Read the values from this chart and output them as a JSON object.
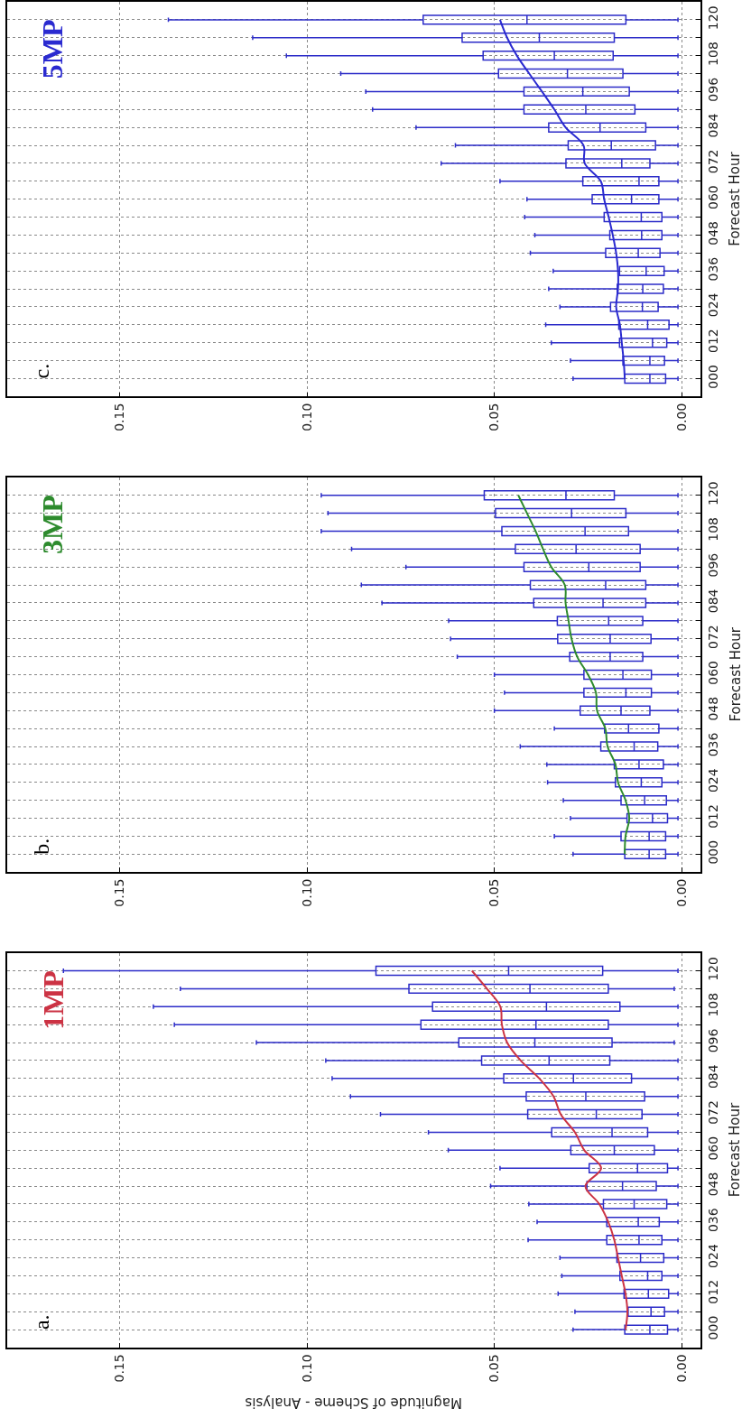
{
  "chart_data": [
    {
      "type": "box",
      "orientation": "horizontal",
      "ylabel": "Forecast Hour",
      "annotations": [
        "c.",
        "5MP"
      ],
      "categories": [
        "120",
        null,
        "108",
        null,
        "096",
        null,
        "084",
        null,
        "072",
        null,
        "060",
        null,
        "048",
        null,
        "036",
        null,
        "024",
        null,
        "012",
        null,
        "000"
      ],
      "xlim": [
        0.18,
        -0.005
      ],
      "xticks": [
        {
          "value": 0.15,
          "label": "0.15"
        },
        {
          "value": 0.1,
          "label": "0.10"
        },
        {
          "value": 0.05,
          "label": "0.05"
        },
        {
          "value": 0,
          "label": "0.00"
        }
      ],
      "grid": true,
      "series": [
        {
          "color": "#2b2bc8",
          "boxes": [
            {
              "low": 0.001,
              "q1": 0.0149,
              "median": 0.0413,
              "q3": 0.069,
              "high": 0.137
            },
            {
              "low": 0.001,
              "q1": 0.018,
              "median": 0.038,
              "q3": 0.0586,
              "high": 0.1145
            },
            {
              "low": 0.001,
              "q1": 0.0183,
              "median": 0.034,
              "q3": 0.053,
              "high": 0.1055
            },
            {
              "low": 0.001,
              "q1": 0.0157,
              "median": 0.0305,
              "q3": 0.0489,
              "high": 0.091
            },
            {
              "low": 0.001,
              "q1": 0.014,
              "median": 0.0264,
              "q3": 0.0421,
              "high": 0.0843
            },
            {
              "low": 0.001,
              "q1": 0.0125,
              "median": 0.0256,
              "q3": 0.0421,
              "high": 0.0825
            },
            {
              "low": 0.001,
              "q1": 0.0096,
              "median": 0.0218,
              "q3": 0.0355,
              "high": 0.0709
            },
            {
              "low": 0.001,
              "q1": 0.007,
              "median": 0.0188,
              "q3": 0.0303,
              "high": 0.0604
            },
            {
              "low": 0.001,
              "q1": 0.0085,
              "median": 0.016,
              "q3": 0.0309,
              "high": 0.0642
            },
            {
              "low": 0.001,
              "q1": 0.0061,
              "median": 0.0114,
              "q3": 0.0264,
              "high": 0.0485
            },
            {
              "low": 0.001,
              "q1": 0.0061,
              "median": 0.0134,
              "q3": 0.0239,
              "high": 0.0413
            },
            {
              "low": 0.001,
              "q1": 0.0053,
              "median": 0.0108,
              "q3": 0.0207,
              "high": 0.0419
            },
            {
              "low": 0.001,
              "q1": 0.0053,
              "median": 0.0107,
              "q3": 0.0192,
              "high": 0.0392
            },
            {
              "low": 0.001,
              "q1": 0.0058,
              "median": 0.0116,
              "q3": 0.0203,
              "high": 0.0404
            },
            {
              "low": 0.001,
              "q1": 0.0047,
              "median": 0.0095,
              "q3": 0.0166,
              "high": 0.0343
            },
            {
              "low": 0.001,
              "q1": 0.0049,
              "median": 0.0104,
              "q3": 0.0172,
              "high": 0.0355
            },
            {
              "low": 0.001,
              "q1": 0.0063,
              "median": 0.0105,
              "q3": 0.019,
              "high": 0.0325
            },
            {
              "low": 0.001,
              "q1": 0.0034,
              "median": 0.0091,
              "q3": 0.0168,
              "high": 0.0363
            },
            {
              "low": 0.001,
              "q1": 0.004,
              "median": 0.0078,
              "q3": 0.0166,
              "high": 0.0348
            },
            {
              "low": 0.001,
              "q1": 0.0046,
              "median": 0.0085,
              "q3": 0.0157,
              "high": 0.0297
            },
            {
              "low": 0.001,
              "q1": 0.0043,
              "median": 0.0085,
              "q3": 0.0152,
              "high": 0.029
            }
          ]
        },
        {
          "type": "line",
          "color": "#2a2ad0",
          "values": [
            0.0485,
            0.0466,
            0.044,
            0.0407,
            0.0373,
            0.034,
            0.031,
            0.0262,
            0.0259,
            0.0216,
            0.0207,
            0.0195,
            0.0184,
            0.0175,
            0.017,
            0.017,
            0.0175,
            0.0165,
            0.016,
            0.0155,
            0.0152
          ]
        }
      ]
    },
    {
      "type": "box",
      "orientation": "horizontal",
      "ylabel": "Forecast Hour",
      "annotations": [
        "b.",
        "3MP"
      ],
      "categories": [
        "120",
        null,
        "108",
        null,
        "096",
        null,
        "084",
        null,
        "072",
        null,
        "060",
        null,
        "048",
        null,
        "036",
        null,
        "024",
        null,
        "012",
        null,
        "000"
      ],
      "xlim": [
        0.18,
        -0.005
      ],
      "xticks": [
        {
          "value": 0.15,
          "label": "0.15"
        },
        {
          "value": 0.1,
          "label": "0.10"
        },
        {
          "value": 0.05,
          "label": "0.05"
        },
        {
          "value": 0,
          "label": "0.00"
        }
      ],
      "grid": true,
      "series": [
        {
          "color": "#2b2bc8",
          "boxes": [
            {
              "low": 0.001,
              "q1": 0.018,
              "median": 0.0309,
              "q3": 0.0527,
              "high": 0.0962
            },
            {
              "low": 0.001,
              "q1": 0.0149,
              "median": 0.0294,
              "q3": 0.0497,
              "high": 0.0944
            },
            {
              "low": 0.001,
              "q1": 0.0142,
              "median": 0.0258,
              "q3": 0.048,
              "high": 0.0962
            },
            {
              "low": 0.001,
              "q1": 0.0111,
              "median": 0.0282,
              "q3": 0.0444,
              "high": 0.0881
            },
            {
              "low": 0.001,
              "q1": 0.0111,
              "median": 0.0248,
              "q3": 0.0421,
              "high": 0.0736
            },
            {
              "low": 0.001,
              "q1": 0.0096,
              "median": 0.0203,
              "q3": 0.0404,
              "high": 0.0855
            },
            {
              "low": 0.001,
              "q1": 0.0096,
              "median": 0.021,
              "q3": 0.0395,
              "high": 0.08
            },
            {
              "low": 0.001,
              "q1": 0.0104,
              "median": 0.0195,
              "q3": 0.0332,
              "high": 0.0622
            },
            {
              "low": 0.001,
              "q1": 0.0082,
              "median": 0.0191,
              "q3": 0.0331,
              "high": 0.0617
            },
            {
              "low": 0.001,
              "q1": 0.0104,
              "median": 0.0191,
              "q3": 0.0299,
              "high": 0.0599
            },
            {
              "low": 0.001,
              "q1": 0.0081,
              "median": 0.0157,
              "q3": 0.0261,
              "high": 0.05
            },
            {
              "low": 0.001,
              "q1": 0.0081,
              "median": 0.0149,
              "q3": 0.0261,
              "high": 0.0473
            },
            {
              "low": 0.001,
              "q1": 0.0085,
              "median": 0.0162,
              "q3": 0.0271,
              "high": 0.05
            },
            {
              "low": 0.001,
              "q1": 0.0061,
              "median": 0.0142,
              "q3": 0.0206,
              "high": 0.034
            },
            {
              "low": 0.001,
              "q1": 0.0064,
              "median": 0.0127,
              "q3": 0.0216,
              "high": 0.0431
            },
            {
              "low": 0.001,
              "q1": 0.0049,
              "median": 0.0114,
              "q3": 0.018,
              "high": 0.036
            },
            {
              "low": 0.001,
              "q1": 0.0053,
              "median": 0.0108,
              "q3": 0.0177,
              "high": 0.0358
            },
            {
              "low": 0.001,
              "q1": 0.0041,
              "median": 0.0099,
              "q3": 0.0162,
              "high": 0.0316
            },
            {
              "low": 0.001,
              "q1": 0.0038,
              "median": 0.0078,
              "q3": 0.0146,
              "high": 0.0297
            },
            {
              "low": 0.001,
              "q1": 0.0043,
              "median": 0.0087,
              "q3": 0.0162,
              "high": 0.034
            },
            {
              "low": 0.001,
              "q1": 0.0043,
              "median": 0.0087,
              "q3": 0.0152,
              "high": 0.029
            }
          ]
        },
        {
          "type": "line",
          "color": "#2e8b2e",
          "values": [
            0.0436,
            0.0413,
            0.039,
            0.037,
            0.0348,
            0.0312,
            0.031,
            0.0302,
            0.0294,
            0.0279,
            0.025,
            0.0229,
            0.0226,
            0.0204,
            0.0198,
            0.0177,
            0.017,
            0.015,
            0.014,
            0.015,
            0.0152
          ]
        }
      ]
    },
    {
      "type": "box",
      "orientation": "horizontal",
      "xlabel": "Magnitude of Scheme - Analysis",
      "ylabel": "Forecast Hour",
      "annotations": [
        "a.",
        "1MP"
      ],
      "categories": [
        "120",
        null,
        "108",
        null,
        "096",
        null,
        "084",
        null,
        "072",
        null,
        "060",
        null,
        "048",
        null,
        "036",
        null,
        "024",
        null,
        "012",
        null,
        "000"
      ],
      "xlim": [
        0.18,
        -0.005
      ],
      "xticks": [
        {
          "value": 0.15,
          "label": "0.15"
        },
        {
          "value": 0.1,
          "label": "0.10"
        },
        {
          "value": 0.05,
          "label": "0.05"
        },
        {
          "value": 0,
          "label": "0.00"
        }
      ],
      "grid": true,
      "series": [
        {
          "color": "#2b2bc8",
          "boxes": [
            {
              "low": 0.001,
              "q1": 0.0211,
              "median": 0.0462,
              "q3": 0.0816,
              "high": 0.165
            },
            {
              "low": 0.002,
              "q1": 0.0196,
              "median": 0.0405,
              "q3": 0.0728,
              "high": 0.1338
            },
            {
              "low": 0.001,
              "q1": 0.0165,
              "median": 0.0361,
              "q3": 0.0665,
              "high": 0.141
            },
            {
              "low": 0.001,
              "q1": 0.0196,
              "median": 0.0389,
              "q3": 0.0696,
              "high": 0.1354
            },
            {
              "low": 0.002,
              "q1": 0.0186,
              "median": 0.0392,
              "q3": 0.0595,
              "high": 0.1135
            },
            {
              "low": 0.001,
              "q1": 0.0192,
              "median": 0.0354,
              "q3": 0.0534,
              "high": 0.095
            },
            {
              "low": 0.001,
              "q1": 0.0134,
              "median": 0.0289,
              "q3": 0.0475,
              "high": 0.0933
            },
            {
              "low": 0.001,
              "q1": 0.0099,
              "median": 0.0256,
              "q3": 0.0415,
              "high": 0.0884
            },
            {
              "low": 0.001,
              "q1": 0.0106,
              "median": 0.0228,
              "q3": 0.0411,
              "high": 0.0804
            },
            {
              "low": 0.001,
              "q1": 0.0091,
              "median": 0.0186,
              "q3": 0.0347,
              "high": 0.0676
            },
            {
              "low": 0.001,
              "q1": 0.0073,
              "median": 0.018,
              "q3": 0.0296,
              "high": 0.0623
            },
            {
              "low": 0.001,
              "q1": 0.0038,
              "median": 0.0118,
              "q3": 0.0247,
              "high": 0.0485
            },
            {
              "low": 0.001,
              "q1": 0.0068,
              "median": 0.0158,
              "q3": 0.0253,
              "high": 0.051
            },
            {
              "low": 0.001,
              "q1": 0.004,
              "median": 0.0127,
              "q3": 0.0209,
              "high": 0.0408
            },
            {
              "low": 0.001,
              "q1": 0.006,
              "median": 0.0116,
              "q3": 0.02,
              "high": 0.0386
            },
            {
              "low": 0.001,
              "q1": 0.0053,
              "median": 0.0114,
              "q3": 0.02,
              "high": 0.041
            },
            {
              "low": 0.001,
              "q1": 0.0048,
              "median": 0.011,
              "q3": 0.0173,
              "high": 0.0325
            },
            {
              "low": 0.001,
              "q1": 0.0053,
              "median": 0.0091,
              "q3": 0.0165,
              "high": 0.032
            },
            {
              "low": 0.001,
              "q1": 0.0035,
              "median": 0.0089,
              "q3": 0.0154,
              "high": 0.033
            },
            {
              "low": 0.001,
              "q1": 0.0046,
              "median": 0.0082,
              "q3": 0.0143,
              "high": 0.0285
            },
            {
              "low": 0.001,
              "q1": 0.0038,
              "median": 0.0085,
              "q3": 0.0152,
              "high": 0.029
            }
          ]
        },
        {
          "type": "line",
          "color": "#cc3344",
          "values": [
            0.056,
            0.052,
            0.0484,
            0.048,
            0.0466,
            0.043,
            0.038,
            0.0342,
            0.0323,
            0.0285,
            0.026,
            0.0215,
            0.0257,
            0.022,
            0.0196,
            0.018,
            0.017,
            0.016,
            0.015,
            0.0145,
            0.015
          ]
        }
      ]
    }
  ]
}
